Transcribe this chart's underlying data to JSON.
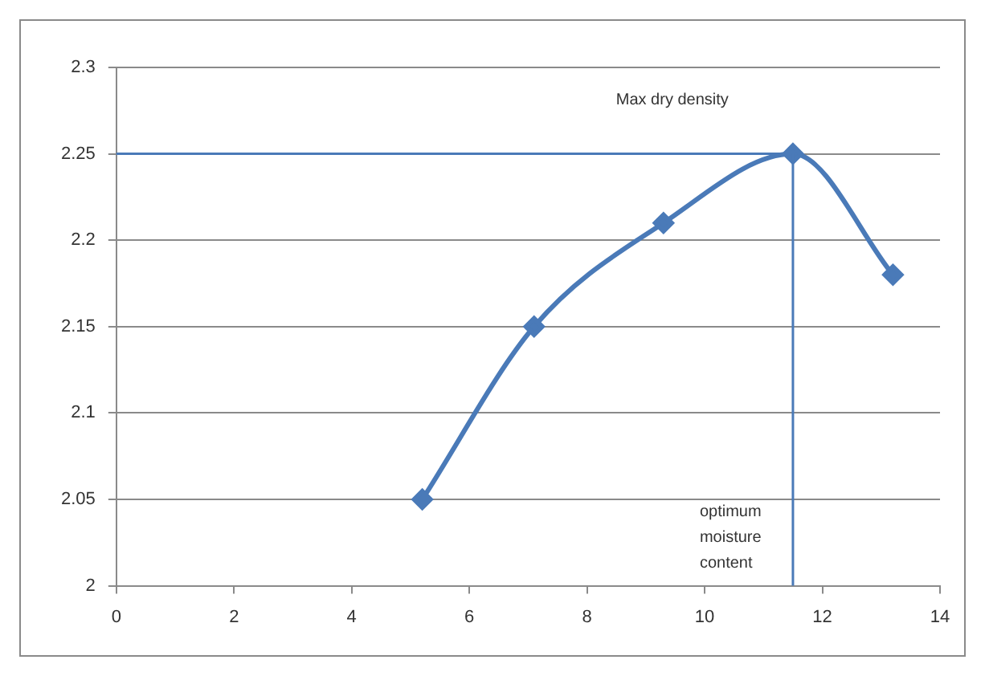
{
  "chart_data": {
    "type": "line",
    "x": [
      5.2,
      7.1,
      9.3,
      11.5,
      13.2
    ],
    "series": [
      {
        "color": "#4a7ab8",
        "values": [
          2.05,
          2.15,
          2.21,
          2.25,
          2.18
        ]
      }
    ],
    "xlim": [
      0,
      14
    ],
    "xticks": [
      0,
      2,
      4,
      6,
      8,
      10,
      12,
      14
    ],
    "ylim": [
      2,
      2.3
    ],
    "yticks": [
      2,
      2.05,
      2.1,
      2.15,
      2.2,
      2.25,
      2.3
    ],
    "grid": "y",
    "legend": false,
    "marker": "diamond",
    "line_style": "solid",
    "ref_lines": [
      {
        "axis": "y",
        "value": 2.25,
        "color": "#4a7ab8"
      },
      {
        "axis": "x",
        "value": 11.5,
        "color": "#4a7ab8"
      }
    ],
    "annotations": [
      "Max dry density",
      {
        "text": "optimum moisture content",
        "x": 11.5,
        "y": 2
      }
    ]
  }
}
